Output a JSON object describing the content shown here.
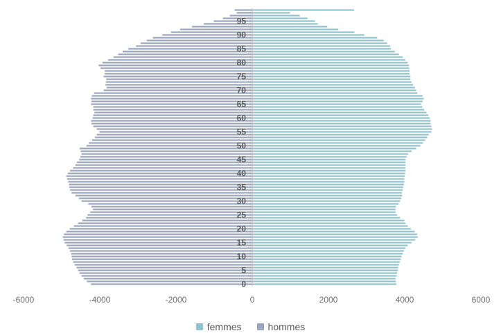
{
  "chart_data": {
    "type": "bar",
    "orientation": "horizontal",
    "subtype": "population-pyramid",
    "xlim": [
      -6000,
      6000
    ],
    "xticks": [
      -6000,
      -4000,
      -2000,
      0,
      2000,
      4000,
      6000
    ],
    "xtick_labels": [
      "-6000",
      "-4000",
      "-2000",
      "0",
      "2000",
      "4000",
      "6000"
    ],
    "ytick_labels": [
      "0",
      "5",
      "10",
      "15",
      "20",
      "25",
      "30",
      "35",
      "40",
      "45",
      "50",
      "55",
      "60",
      "65",
      "70",
      "75",
      "80",
      "85",
      "90",
      "95"
    ],
    "ages": [
      0,
      1,
      2,
      3,
      4,
      5,
      6,
      7,
      8,
      9,
      10,
      11,
      12,
      13,
      14,
      15,
      16,
      17,
      18,
      19,
      20,
      21,
      22,
      23,
      24,
      25,
      26,
      27,
      28,
      29,
      30,
      31,
      32,
      33,
      34,
      35,
      36,
      37,
      38,
      39,
      40,
      41,
      42,
      43,
      44,
      45,
      46,
      47,
      48,
      49,
      50,
      51,
      52,
      53,
      54,
      55,
      56,
      57,
      58,
      59,
      60,
      61,
      62,
      63,
      64,
      65,
      66,
      67,
      68,
      69,
      70,
      71,
      72,
      73,
      74,
      75,
      76,
      77,
      78,
      79,
      80,
      81,
      82,
      83,
      84,
      85,
      86,
      87,
      88,
      89,
      90,
      91,
      92,
      93,
      94,
      95,
      96,
      97,
      98,
      99
    ],
    "series": [
      {
        "name": "femmes",
        "color": "#8fc3cf",
        "values": [
          3780,
          3770,
          3760,
          3790,
          3800,
          3820,
          3830,
          3850,
          3870,
          3900,
          3920,
          3950,
          3980,
          4020,
          4080,
          4180,
          4280,
          4340,
          4330,
          4260,
          4160,
          4080,
          4020,
          3990,
          3880,
          3800,
          3760,
          3760,
          3770,
          3840,
          3880,
          3910,
          3930,
          3930,
          3950,
          3960,
          3980,
          3990,
          3990,
          4000,
          4010,
          4020,
          4020,
          4020,
          4020,
          4020,
          4050,
          4090,
          4180,
          4300,
          4410,
          4480,
          4540,
          4590,
          4630,
          4700,
          4720,
          4700,
          4680,
          4680,
          4660,
          4620,
          4570,
          4510,
          4460,
          4430,
          4470,
          4500,
          4470,
          4330,
          4300,
          4270,
          4220,
          4180,
          4150,
          4150,
          4130,
          4130,
          4120,
          4110,
          4080,
          4010,
          3950,
          3850,
          3740,
          3640,
          3620,
          3540,
          3450,
          3280,
          2940,
          2680,
          2260,
          1970,
          1720,
          1650,
          1450,
          1250,
          990,
          2670
        ]
      },
      {
        "name": "hommes",
        "color": "#9aa6be",
        "values": [
          4230,
          4340,
          4420,
          4480,
          4530,
          4570,
          4610,
          4660,
          4700,
          4730,
          4740,
          4750,
          4780,
          4820,
          4870,
          4920,
          4950,
          4970,
          4940,
          4880,
          4790,
          4680,
          4570,
          4460,
          4360,
          4320,
          4250,
          4180,
          4220,
          4300,
          4480,
          4550,
          4640,
          4740,
          4780,
          4800,
          4810,
          4830,
          4860,
          4880,
          4840,
          4780,
          4700,
          4640,
          4600,
          4540,
          4510,
          4480,
          4500,
          4530,
          4350,
          4290,
          4200,
          4130,
          4080,
          4010,
          4080,
          4170,
          4220,
          4230,
          4190,
          4170,
          4140,
          4170,
          4170,
          4230,
          4220,
          4230,
          4210,
          4150,
          3900,
          3820,
          3850,
          3840,
          3830,
          3900,
          3870,
          3870,
          3980,
          4030,
          3930,
          3780,
          3640,
          3520,
          3400,
          3250,
          3050,
          2930,
          2770,
          2610,
          2360,
          2130,
          1890,
          1580,
          1270,
          1010,
          770,
          590,
          410,
          460
        ]
      }
    ],
    "legend": [
      "femmes",
      "hommes"
    ],
    "legend_position": "bottom-center",
    "grid": false
  }
}
